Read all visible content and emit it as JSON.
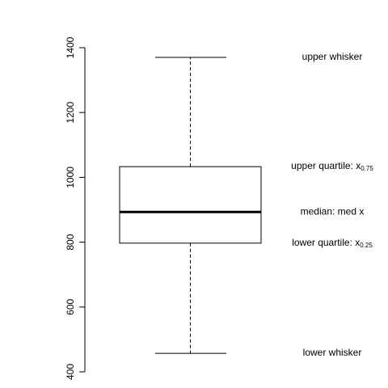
{
  "chart_data": {
    "type": "box",
    "orientation": "vertical",
    "title": "",
    "xlabel": "",
    "ylabel": "",
    "ylim": [
      400,
      1400
    ],
    "y_ticks": [
      400,
      600,
      800,
      1000,
      1200,
      1400
    ],
    "y_tick_labels": [
      "400",
      "600",
      "800",
      "1000",
      "1200",
      "1400"
    ],
    "grid": false,
    "box": {
      "lower_whisker": 457,
      "lower_quartile": 797,
      "median": 893,
      "upper_quartile": 1033,
      "upper_whisker": 1370
    },
    "annotations": [
      {
        "key": "upper_whisker",
        "text": "upper whisker",
        "sub": "",
        "value": 1370
      },
      {
        "key": "upper_quartile",
        "text": "upper quartile: x",
        "sub": "0.75",
        "value": 1033
      },
      {
        "key": "median",
        "text": "median: med x",
        "sub": "",
        "value": 893
      },
      {
        "key": "lower_quartile",
        "text": "lower quartile: x",
        "sub": "0.25",
        "value": 797
      },
      {
        "key": "lower_whisker",
        "text": "lower whisker",
        "sub": "",
        "value": 457
      }
    ]
  }
}
